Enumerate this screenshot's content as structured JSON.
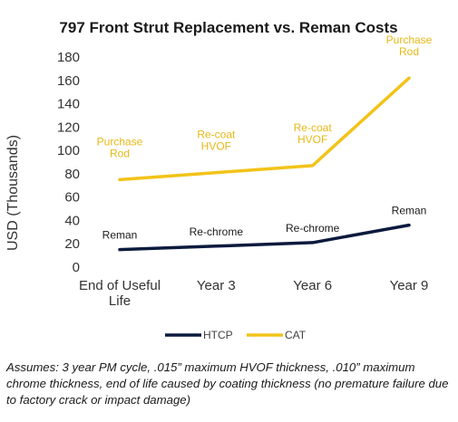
{
  "chart_data": {
    "type": "line",
    "title": "797 Front Strut Replacement vs. Reman Costs",
    "ylabel": "USD (Thousands)",
    "xlabel": "",
    "categories": [
      [
        "End of Useful",
        "Life"
      ],
      [
        "Year 3"
      ],
      [
        "Year 6"
      ],
      [
        "Year 9"
      ]
    ],
    "ylim": [
      0,
      180
    ],
    "yticks": [
      0,
      20,
      40,
      60,
      80,
      100,
      120,
      140,
      160,
      180
    ],
    "grid": false,
    "legend_position": "bottom",
    "series": [
      {
        "name": "HTCP",
        "color": "#0b1a3d",
        "values": [
          15,
          18,
          21,
          36
        ],
        "annotations": [
          [
            "Reman"
          ],
          [
            "Re-chrome"
          ],
          [
            "Re-chrome"
          ],
          [
            "Reman"
          ]
        ]
      },
      {
        "name": "CAT",
        "color": "#f2c318",
        "values": [
          75,
          81,
          87,
          162
        ],
        "annotations": [
          [
            "Purchase",
            "Rod"
          ],
          [
            "Re-coat",
            "HVOF"
          ],
          [
            "Re-coat",
            "HVOF"
          ],
          [
            "Purchase",
            "Rod"
          ]
        ]
      }
    ]
  },
  "footnote": "Assumes: 3 year PM cycle, .015” maximum HVOF thickness, .010” maximum chrome thickness, end of life caused by coating thickness (no premature failure due to factory crack or impact damage)"
}
